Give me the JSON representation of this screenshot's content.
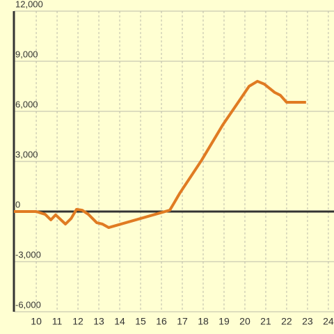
{
  "chart_data": {
    "type": "line",
    "x": [
      8.93,
      10,
      10.43,
      10.7,
      10.93,
      11.4,
      11.67,
      11.93,
      12.2,
      12.5,
      12.9,
      13.17,
      13.47,
      16.4,
      16.6,
      16.87,
      17.93,
      18.93,
      19.77,
      20.2,
      20.6,
      20.93,
      21.43,
      21.7,
      22,
      22.93
    ],
    "values": [
      0,
      0,
      -170,
      -500,
      -200,
      -750,
      -420,
      130,
      80,
      -170,
      -670,
      -750,
      -960,
      80,
      500,
      1080,
      3080,
      5170,
      6710,
      7500,
      7800,
      7630,
      7130,
      6960,
      6540,
      6540
    ],
    "color": "#e07b22",
    "xlim": [
      8.93,
      24.27
    ],
    "xticks": [
      10,
      11,
      12,
      13,
      14,
      15,
      16,
      17,
      18,
      19,
      20,
      21,
      22,
      23,
      24
    ],
    "ylim": [
      -6000,
      12000
    ],
    "yticks": [
      {
        "value": -6000,
        "label": "-6,000"
      },
      {
        "value": -3000,
        "label": "-3,000"
      },
      0,
      {
        "value": 3000,
        "label": "3,000"
      },
      {
        "value": 6000,
        "label": "6,000"
      },
      {
        "value": 9000,
        "label": "9,000"
      },
      {
        "value": 12000,
        "label": "12,000"
      }
    ],
    "grid": true
  }
}
